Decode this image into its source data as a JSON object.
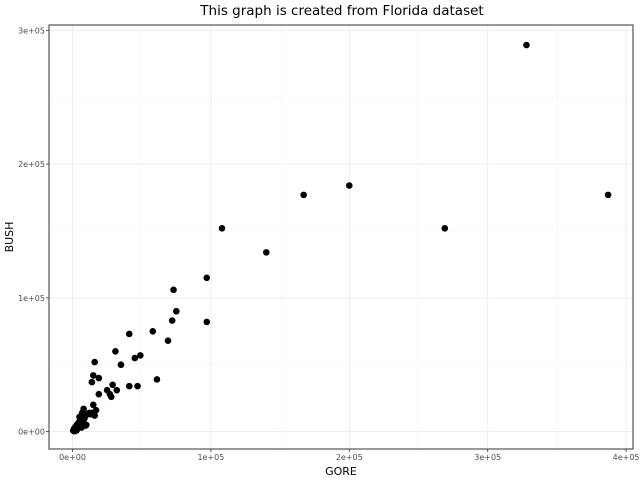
{
  "chart_data": {
    "type": "scatter",
    "title": "This graph is created from Florida dataset",
    "xlabel": "GORE",
    "ylabel": "BUSH",
    "xlim": [
      -17000,
      405000
    ],
    "ylim": [
      -13000,
      304000
    ],
    "x_ticks": [
      {
        "value": 0,
        "label": "0e+00"
      },
      {
        "value": 100000,
        "label": "1e+05"
      },
      {
        "value": 200000,
        "label": "2e+05"
      },
      {
        "value": 300000,
        "label": "3e+05"
      },
      {
        "value": 400000,
        "label": "4e+05"
      }
    ],
    "y_ticks": [
      {
        "value": 0,
        "label": "0e+00"
      },
      {
        "value": 100000,
        "label": "1e+05"
      },
      {
        "value": 200000,
        "label": "2e+05"
      },
      {
        "value": 300000,
        "label": "3e+05"
      }
    ],
    "grid": true,
    "series": [
      {
        "points": [
          [
            328000,
            289000
          ],
          [
            387000,
            177000
          ],
          [
            200000,
            184000
          ],
          [
            167000,
            177000
          ],
          [
            269000,
            152000
          ],
          [
            108000,
            152000
          ],
          [
            140000,
            134000
          ],
          [
            97000,
            115000
          ],
          [
            73000,
            106000
          ],
          [
            75000,
            90000
          ],
          [
            72000,
            83000
          ],
          [
            97000,
            82000
          ],
          [
            41000,
            73000
          ],
          [
            58000,
            75000
          ],
          [
            69000,
            68000
          ],
          [
            31000,
            60000
          ],
          [
            49000,
            57000
          ],
          [
            45000,
            55000
          ],
          [
            16000,
            52000
          ],
          [
            35000,
            50000
          ],
          [
            15000,
            42000
          ],
          [
            19000,
            40000
          ],
          [
            61000,
            39000
          ],
          [
            14000,
            37000
          ],
          [
            41000,
            34000
          ],
          [
            47000,
            34000
          ],
          [
            29000,
            35000
          ],
          [
            32000,
            31000
          ],
          [
            27000,
            28000
          ],
          [
            25000,
            31000
          ],
          [
            19000,
            28000
          ],
          [
            28000,
            26000
          ],
          [
            15000,
            20000
          ],
          [
            17000,
            16000
          ],
          [
            14000,
            14000
          ],
          [
            11000,
            13000
          ],
          [
            8000,
            17000
          ],
          [
            7000,
            14000
          ],
          [
            9000,
            11000
          ],
          [
            6000,
            9000
          ],
          [
            5000,
            11000
          ],
          [
            10000,
            5000
          ],
          [
            8000,
            6000
          ],
          [
            6000,
            5000
          ],
          [
            4000,
            6000
          ],
          [
            4000,
            4000
          ],
          [
            3000,
            3000
          ],
          [
            2000,
            2000
          ],
          [
            3000,
            5000
          ],
          [
            1500,
            1500
          ],
          [
            1000,
            2000
          ],
          [
            2500,
            1200
          ],
          [
            1000,
            1000
          ],
          [
            500,
            800
          ],
          [
            13000,
            13000
          ],
          [
            16000,
            12000
          ],
          [
            7000,
            8000
          ],
          [
            5000,
            4000
          ],
          [
            2000,
            3500
          ],
          [
            4500,
            7000
          ],
          [
            12000,
            14000
          ],
          [
            8500,
            9500
          ],
          [
            3000,
            1000
          ],
          [
            2000,
            500
          ],
          [
            6500,
            3000
          ],
          [
            9500,
            4500
          ],
          [
            1200,
            300
          ]
        ]
      }
    ]
  }
}
